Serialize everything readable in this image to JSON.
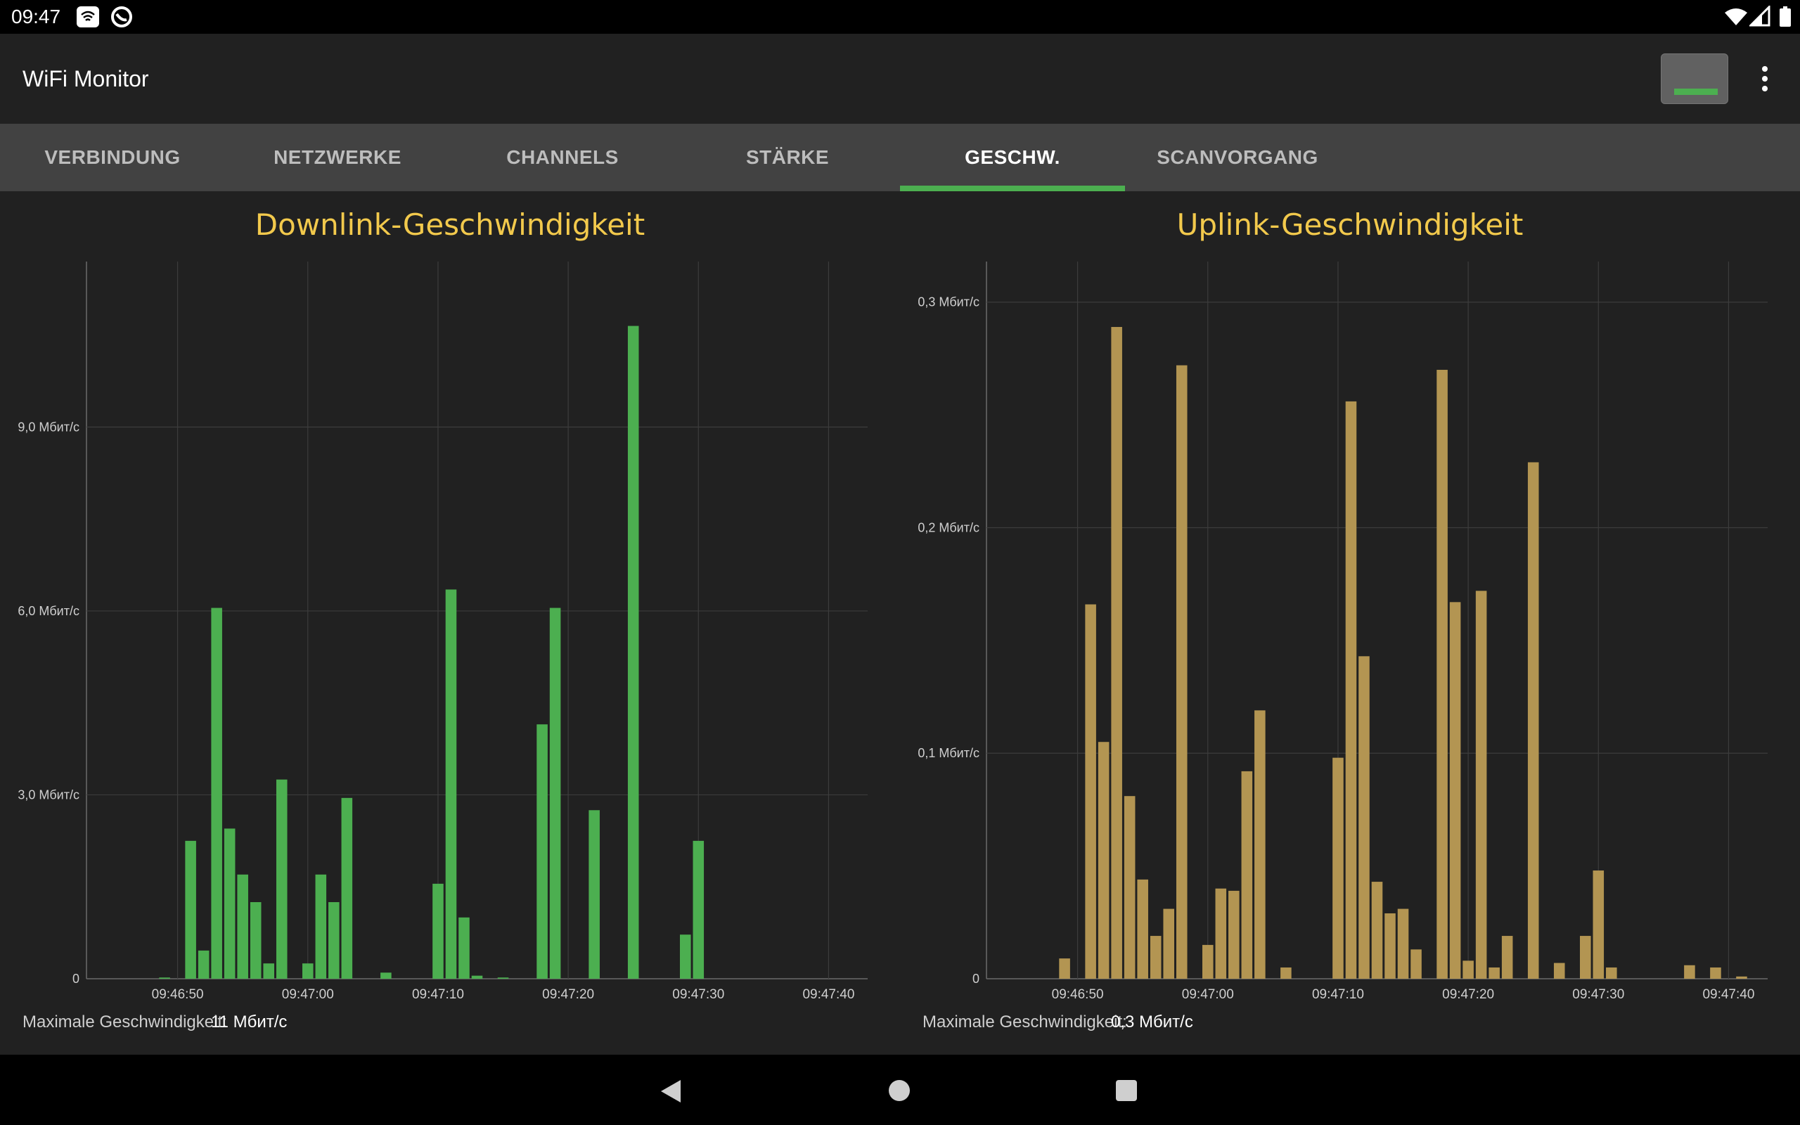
{
  "status_bar": {
    "time": "09:47"
  },
  "app_bar": {
    "title": "WiFi Monitor",
    "battery_icon": "battery-icon",
    "menu_icon": "more-vert-icon"
  },
  "tabs": [
    {
      "label": "VERBINDUNG"
    },
    {
      "label": "NETZWERKE"
    },
    {
      "label": "CHANNELS"
    },
    {
      "label": "STÄRKE"
    },
    {
      "label": "GESCHW.",
      "active": true
    },
    {
      "label": "SCANVORGANG"
    }
  ],
  "colors": {
    "accent": "#4caf50",
    "downlink_bars": "#4caf50",
    "uplink_bars": "#b39552",
    "title_color": "#f2c94c",
    "tab_bar": "#424242"
  },
  "downlink": {
    "max_label": "Maximale Geschwindigkeit:",
    "max_value": "11 Мбит/с"
  },
  "uplink": {
    "max_label": "Maximale Geschwindigkeit:",
    "max_value": "0,3 Мбит/с"
  },
  "chart_data": [
    {
      "type": "bar",
      "title": "Downlink-Geschwindigkeit",
      "x_tick_labels": [
        "09:46:50",
        "09:47:00",
        "09:47:10",
        "09:47:20",
        "09:47:30",
        "09:47:40"
      ],
      "x_ticks_seconds": [
        10,
        20,
        30,
        40,
        50,
        60
      ],
      "y_tick_labels": [
        "0",
        "3,0 Мбит/с",
        "6,0 Мбит/с",
        "9,0 Мбит/с"
      ],
      "y_ticks": [
        0,
        3,
        6,
        9
      ],
      "ylim": [
        0,
        11.7
      ],
      "xlim": [
        3,
        63
      ],
      "unit": "Мбит/с",
      "x": [
        9,
        11,
        12,
        13,
        14,
        15,
        16,
        17,
        18,
        19,
        20,
        21,
        22,
        23,
        24,
        26,
        29,
        30,
        31,
        32,
        33,
        35,
        38,
        39,
        40,
        42,
        45,
        49,
        50
      ],
      "values": [
        0.02,
        2.25,
        0.46,
        6.05,
        2.45,
        1.7,
        1.25,
        0.25,
        3.25,
        0.0,
        0.25,
        1.7,
        1.25,
        2.95,
        0.0,
        0.1,
        0.0,
        1.55,
        6.35,
        1.0,
        0.05,
        0.02,
        4.15,
        6.05,
        0.0,
        2.75,
        10.65,
        0.72,
        2.25
      ]
    },
    {
      "type": "bar",
      "title": "Uplink-Geschwindigkeit",
      "x_tick_labels": [
        "09:46:50",
        "09:47:00",
        "09:47:10",
        "09:47:20",
        "09:47:30",
        "09:47:40"
      ],
      "x_ticks_seconds": [
        10,
        20,
        30,
        40,
        50,
        60
      ],
      "y_tick_labels": [
        "0",
        "0,1 Мбит/с",
        "0,2 Мбит/с",
        "0,3 Мбит/с"
      ],
      "y_ticks": [
        0,
        0.1,
        0.2,
        0.3
      ],
      "ylim": [
        0,
        0.318
      ],
      "xlim": [
        3,
        63
      ],
      "unit": "Мбит/с",
      "x": [
        9,
        11,
        12,
        13,
        14,
        15,
        16,
        17,
        18,
        19,
        20,
        21,
        22,
        23,
        24,
        25,
        26,
        27,
        29,
        30,
        31,
        32,
        33,
        34,
        35,
        36,
        37,
        38,
        39,
        40,
        41,
        42,
        43,
        45,
        47,
        49,
        50,
        51,
        52,
        57,
        59,
        61,
        62
      ],
      "values": [
        0.009,
        0.166,
        0.105,
        0.289,
        0.081,
        0.044,
        0.019,
        0.031,
        0.272,
        0.0,
        0.015,
        0.04,
        0.039,
        0.092,
        0.119,
        0.0,
        0.005,
        0.0,
        0.0,
        0.098,
        0.256,
        0.143,
        0.043,
        0.029,
        0.031,
        0.013,
        0.0,
        0.27,
        0.167,
        0.008,
        0.172,
        0.005,
        0.019,
        0.229,
        0.007,
        0.019,
        0.048,
        0.005,
        0.0,
        0.006,
        0.005,
        0.001,
        0.0
      ]
    }
  ]
}
